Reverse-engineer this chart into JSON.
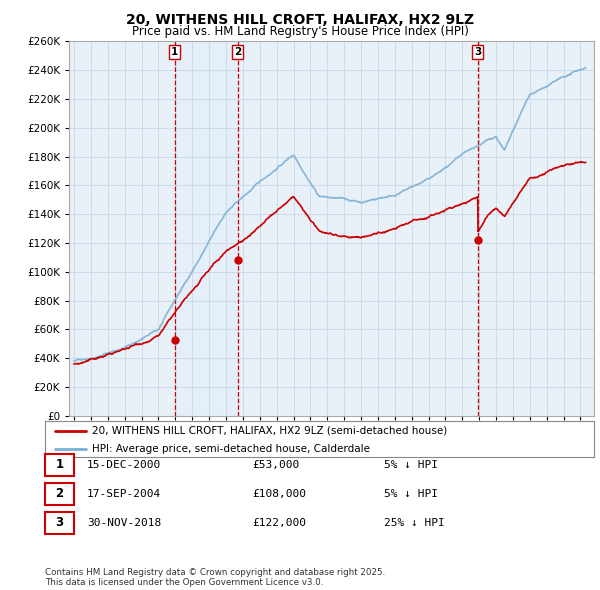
{
  "title": "20, WITHENS HILL CROFT, HALIFAX, HX2 9LZ",
  "subtitle": "Price paid vs. HM Land Registry's House Price Index (HPI)",
  "legend_line1": "20, WITHENS HILL CROFT, HALIFAX, HX2 9LZ (semi-detached house)",
  "legend_line2": "HPI: Average price, semi-detached house, Calderdale",
  "footer": "Contains HM Land Registry data © Crown copyright and database right 2025.\nThis data is licensed under the Open Government Licence v3.0.",
  "sale_label_rows": [
    {
      "num": "1",
      "date": "15-DEC-2000",
      "price": "£53,000",
      "pct": "5% ↓ HPI"
    },
    {
      "num": "2",
      "date": "17-SEP-2004",
      "price": "£108,000",
      "pct": "5% ↓ HPI"
    },
    {
      "num": "3",
      "date": "30-NOV-2018",
      "price": "£122,000",
      "pct": "25% ↓ HPI"
    }
  ],
  "sale_years": [
    2000.96,
    2004.71,
    2018.92
  ],
  "sale_prices": [
    53000,
    108000,
    122000
  ],
  "ylim": [
    0,
    260000
  ],
  "ytick_step": 20000,
  "hpi_color": "#7bafd4",
  "price_color": "#cc0000",
  "vline_color": "#cc0000",
  "shade_color": "#ddeeff",
  "grid_color": "#c8d8e8",
  "background_color": "#ffffff",
  "plot_bg_color": "#e8f0f8"
}
